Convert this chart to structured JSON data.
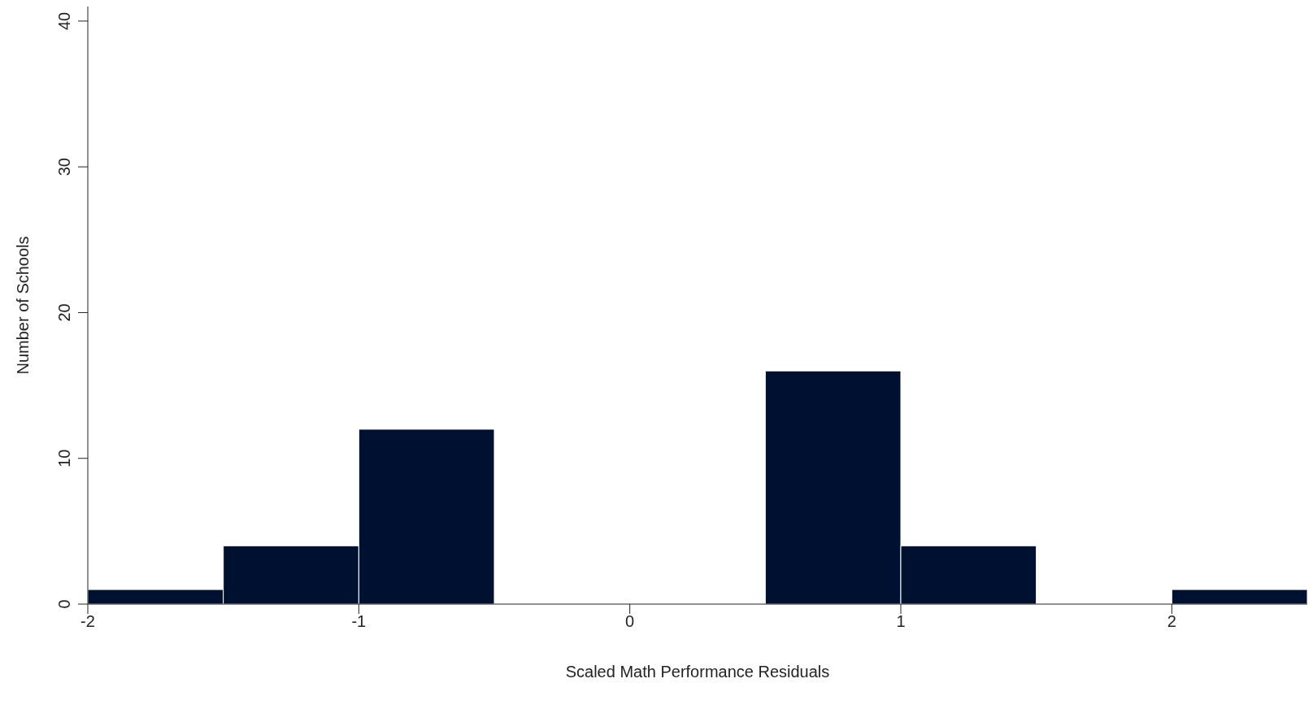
{
  "chart_data": {
    "type": "histogram",
    "xlabel": "Scaled Math Performance Residuals",
    "ylabel": "Number of Schools",
    "bins": [
      -2,
      -1.5,
      -1,
      -0.5,
      0,
      0.5,
      1,
      1.5,
      2,
      2.5
    ],
    "values": [
      1,
      4,
      12,
      null,
      null,
      16,
      4,
      0,
      1
    ],
    "color": "#001030",
    "xlim": [
      -2,
      2.5
    ],
    "xticks": [
      -2,
      -1,
      0,
      1,
      2
    ],
    "ylim": [
      0,
      41
    ],
    "yticks": [
      0,
      10,
      20,
      30,
      40
    ]
  }
}
